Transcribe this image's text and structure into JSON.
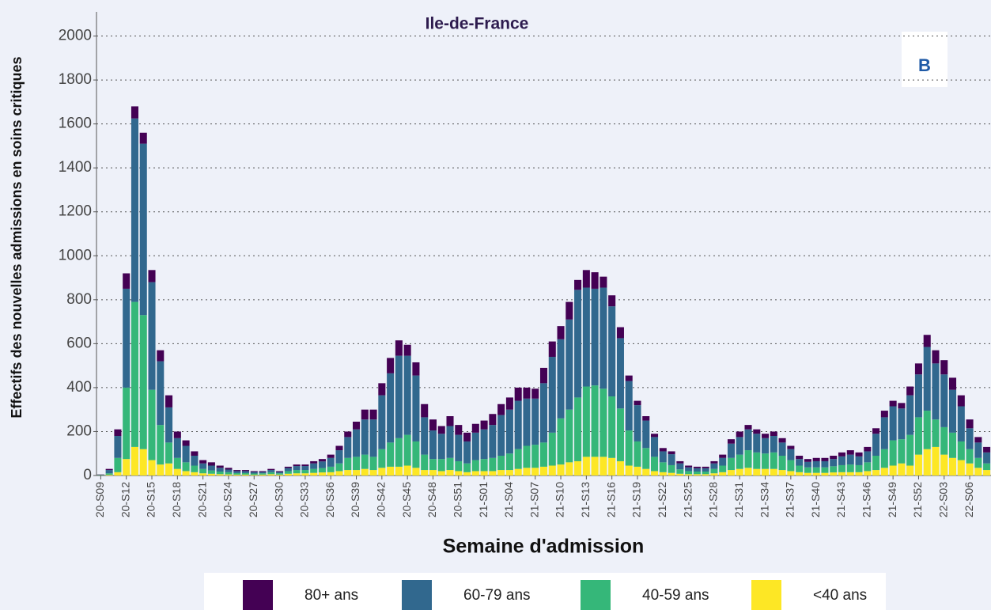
{
  "chart_data": {
    "type": "bar",
    "stacked": true,
    "title": "Ile-de-France",
    "panel_label": "B",
    "xlabel": "Semaine d'admission",
    "ylabel": "Effectifs des nouvelles admissions en soins critiques",
    "ylim": [
      0,
      2110
    ],
    "yticks": [
      0,
      200,
      400,
      600,
      800,
      1000,
      1200,
      1400,
      1600,
      1800,
      2000
    ],
    "grid": true,
    "legend": "bottom",
    "categories": [
      "20-S09",
      null,
      null,
      "20-S12",
      null,
      null,
      "20-S15",
      null,
      null,
      "20-S18",
      null,
      null,
      "20-S21",
      null,
      null,
      "20-S24",
      null,
      null,
      "20-S27",
      null,
      null,
      "20-S30",
      null,
      null,
      "20-S33",
      null,
      null,
      "20-S36",
      null,
      null,
      "20-S39",
      null,
      null,
      "20-S42",
      null,
      null,
      "20-S45",
      null,
      null,
      "20-S48",
      null,
      null,
      "20-S51",
      null,
      null,
      "21-S01",
      null,
      null,
      "21-S04",
      null,
      null,
      "21-S07",
      null,
      null,
      "21-S10",
      null,
      null,
      "21-S13",
      null,
      null,
      "21-S16",
      null,
      null,
      "21-S19",
      null,
      null,
      "21-S22",
      null,
      null,
      "21-S25",
      null,
      null,
      "21-S28",
      null,
      null,
      "21-S31",
      null,
      null,
      "21-S34",
      null,
      null,
      "21-S37",
      null,
      null,
      "21-S40",
      null,
      null,
      "21-S43",
      null,
      null,
      "21-S46",
      null,
      null,
      "21-S49",
      null,
      null,
      "21-S52",
      null,
      null,
      "22-S03",
      null,
      null,
      "22-S06",
      null,
      null
    ],
    "series": [
      {
        "name": "80+ ans",
        "color": "#440154",
        "values": [
          1,
          5,
          30,
          70,
          55,
          50,
          55,
          50,
          55,
          30,
          25,
          20,
          15,
          15,
          10,
          8,
          5,
          5,
          4,
          4,
          5,
          4,
          6,
          7,
          7,
          10,
          11,
          15,
          20,
          25,
          35,
          45,
          45,
          55,
          70,
          70,
          50,
          60,
          60,
          50,
          35,
          45,
          45,
          40,
          40,
          40,
          50,
          50,
          55,
          60,
          50,
          45,
          70,
          70,
          60,
          80,
          45,
          80,
          75,
          50,
          50,
          50,
          25,
          20,
          20,
          15,
          15,
          13,
          10,
          8,
          7,
          7,
          10,
          15,
          20,
          25,
          20,
          20,
          20,
          20,
          20,
          15,
          15,
          13,
          15,
          15,
          15,
          18,
          20,
          18,
          20,
          25,
          30,
          25,
          25,
          40,
          50,
          55,
          60,
          65,
          55,
          50,
          40,
          25,
          25
        ]
      },
      {
        "name": "60-79 ans",
        "color": "#31688e",
        "values": [
          2,
          15,
          100,
          450,
          835,
          780,
          490,
          290,
          160,
          90,
          75,
          45,
          25,
          22,
          17,
          12,
          9,
          9,
          7,
          6,
          10,
          6,
          14,
          18,
          18,
          25,
          30,
          40,
          60,
          95,
          125,
          160,
          170,
          245,
          315,
          375,
          360,
          300,
          170,
          130,
          115,
          145,
          120,
          100,
          125,
          135,
          150,
          185,
          200,
          220,
          215,
          210,
          270,
          345,
          360,
          410,
          490,
          450,
          440,
          460,
          410,
          320,
          225,
          165,
          125,
          90,
          50,
          50,
          27,
          17,
          15,
          15,
          25,
          35,
          65,
          80,
          95,
          85,
          70,
          75,
          60,
          50,
          30,
          25,
          28,
          28,
          33,
          40,
          45,
          40,
          50,
          100,
          145,
          155,
          140,
          180,
          195,
          290,
          255,
          240,
          195,
          160,
          95,
          70,
          50
        ]
      },
      {
        "name": "40-59 ans",
        "color": "#35b779",
        "values": [
          1,
          7,
          65,
          325,
          660,
          610,
          320,
          180,
          95,
          50,
          40,
          30,
          20,
          15,
          12,
          10,
          7,
          7,
          6,
          6,
          9,
          6,
          12,
          15,
          15,
          18,
          20,
          25,
          35,
          55,
          60,
          65,
          60,
          85,
          110,
          130,
          140,
          120,
          70,
          50,
          55,
          55,
          45,
          40,
          50,
          55,
          60,
          65,
          75,
          90,
          100,
          105,
          110,
          150,
          210,
          240,
          290,
          320,
          325,
          310,
          280,
          240,
          160,
          115,
          95,
          65,
          45,
          35,
          20,
          14,
          12,
          12,
          20,
          30,
          55,
          65,
          80,
          75,
          70,
          75,
          65,
          50,
          30,
          25,
          25,
          25,
          28,
          32,
          35,
          32,
          40,
          65,
          85,
          115,
          110,
          140,
          170,
          175,
          125,
          125,
          115,
          85,
          65,
          45,
          30
        ]
      },
      {
        "name": "<40 ans",
        "color": "#fde725",
        "values": [
          1,
          3,
          15,
          75,
          130,
          120,
          70,
          50,
          55,
          30,
          20,
          15,
          10,
          8,
          6,
          5,
          4,
          4,
          3,
          4,
          6,
          4,
          8,
          10,
          10,
          12,
          14,
          15,
          20,
          25,
          25,
          30,
          25,
          35,
          40,
          40,
          45,
          35,
          25,
          25,
          20,
          25,
          20,
          15,
          20,
          20,
          20,
          25,
          25,
          30,
          35,
          35,
          40,
          45,
          50,
          60,
          65,
          85,
          85,
          85,
          80,
          65,
          45,
          40,
          30,
          20,
          15,
          12,
          8,
          6,
          6,
          6,
          10,
          15,
          25,
          30,
          35,
          30,
          30,
          30,
          25,
          20,
          15,
          12,
          12,
          12,
          14,
          15,
          15,
          15,
          20,
          25,
          35,
          45,
          55,
          45,
          95,
          120,
          130,
          95,
          80,
          70,
          55,
          35,
          25
        ]
      }
    ]
  }
}
